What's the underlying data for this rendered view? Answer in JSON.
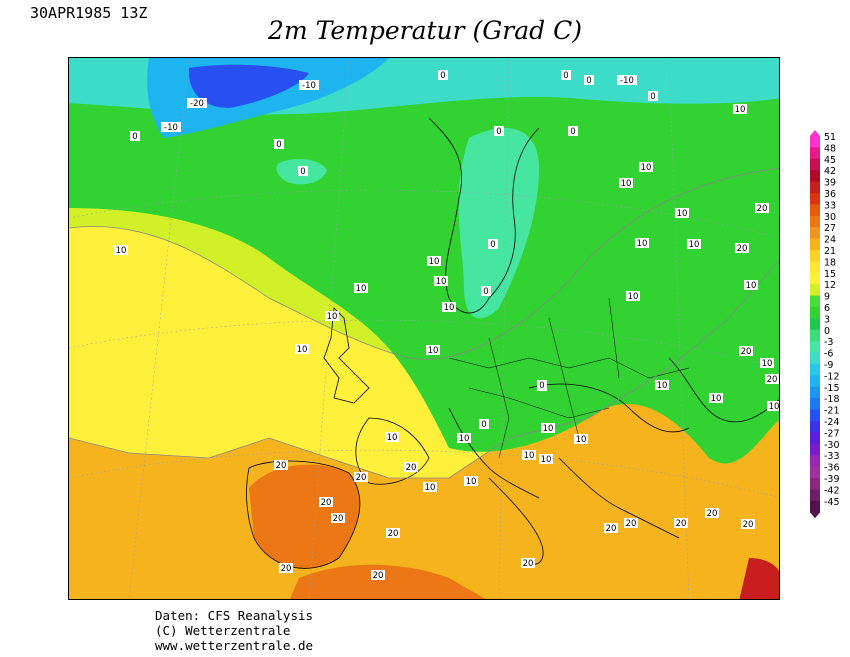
{
  "header": {
    "date_label": "30APR1985 13Z",
    "title": "2m Temperatur (Grad C)"
  },
  "credits": {
    "line1": "Daten: CFS Reanalysis",
    "line2": "(C) Wetterzentrale",
    "line3": "www.wetterzentrale.de"
  },
  "legend": {
    "values": [
      "51",
      "48",
      "45",
      "42",
      "39",
      "36",
      "33",
      "30",
      "27",
      "24",
      "21",
      "18",
      "15",
      "12",
      "9",
      "6",
      "3",
      "0",
      "-3",
      "-6",
      "-9",
      "-12",
      "-15",
      "-18",
      "-21",
      "-24",
      "-27",
      "-30",
      "-33",
      "-36",
      "-39",
      "-42",
      "-45"
    ],
    "colors": [
      "#ff33cc",
      "#e6198a",
      "#c80f50",
      "#b00a28",
      "#c81e1e",
      "#dc3214",
      "#e65a0f",
      "#eb7814",
      "#f0961e",
      "#f5b41e",
      "#fad228",
      "#ffe632",
      "#fff03c",
      "#d2f028",
      "#46dc3c",
      "#32d232",
      "#1ec850",
      "#3cdc78",
      "#46e6a0",
      "#3cdcc8",
      "#28c8e6",
      "#1eb4f0",
      "#1e96f0",
      "#1e78f0",
      "#2850f0",
      "#3c32e6",
      "#5a1edc",
      "#781ec8",
      "#9628b4",
      "#a0329b",
      "#8c287d",
      "#6e1e64",
      "#50144b"
    ]
  },
  "map": {
    "contour_labels": {
      "greenland_1": "-20",
      "greenland_2": "-10",
      "greenland_3": "-10",
      "svalbard_1": "-10",
      "arctic_1": "0",
      "arctic_2": "0",
      "arctic_3": "0",
      "arctic_4": "0",
      "iceland_1": "0",
      "iceland_2": "0",
      "iceland_3": "0",
      "barents_1": "10",
      "russia_1": "10",
      "russia_2": "10",
      "russia_3": "10",
      "russia_4": "10",
      "russia_5": "20",
      "russia_6": "20",
      "scand_1": "0",
      "scand_2": "0",
      "scand_3": "0",
      "scand_4": "0",
      "scand_5": "10",
      "scand_6": "10",
      "scand_7": "10",
      "atl_1": "10",
      "atl_2": "10",
      "uk_1": "10",
      "uk_2": "10",
      "uk_3": "10",
      "ne_1": "10",
      "baltic_1": "10",
      "ru_sw_1": "10",
      "steppe_1": "20",
      "steppe_2": "10",
      "steppe_3": "10",
      "steppe_4": "20",
      "steppe_5": "10",
      "steppe_6": "10",
      "alps_1": "0",
      "alps_2": "0",
      "alps_3": "10",
      "fr_1": "10",
      "iber_1": "20",
      "iber_2": "20",
      "iber_3": "20",
      "iber_4": "20",
      "iber_5": "20",
      "iber_6": "20",
      "med_1": "10",
      "med_2": "20",
      "med_3": "20",
      "med_4": "20",
      "balk_1": "10",
      "balk_2": "10",
      "balk_3": "10",
      "balk_4": "10",
      "balk_5": "20",
      "balk_6": "20",
      "tur_1": "20",
      "tur_2": "20",
      "tur_3": "20",
      "carp_1": "10",
      "carp_2": "0"
    }
  }
}
